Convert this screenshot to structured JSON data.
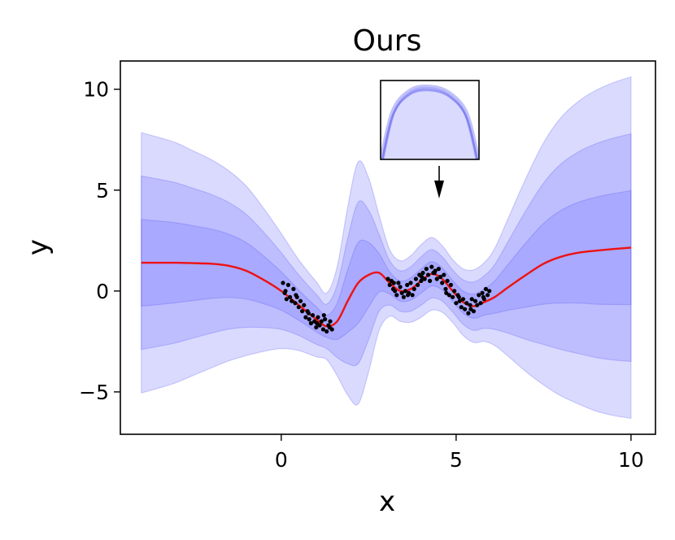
{
  "chart_data": {
    "type": "line",
    "title": "Ours",
    "xlabel": "x",
    "ylabel": "y",
    "xlim": [
      -4.6,
      10.7
    ],
    "ylim": [
      -7.1,
      11.4
    ],
    "xticks": [
      0,
      5,
      10
    ],
    "xtick_labels": [
      "0",
      "5",
      "10"
    ],
    "yticks": [
      -5,
      0,
      5,
      10
    ],
    "ytick_labels": [
      "−5",
      "0",
      "5",
      "10"
    ],
    "grid": false,
    "legend": "none",
    "colors": {
      "mean_line": "#ee1111",
      "band_fill": "#6a6aff",
      "band_edge": "#5050ee",
      "points": "#000000"
    },
    "x": [
      -4,
      -3.5,
      -3,
      -2.5,
      -2,
      -1.5,
      -1,
      -0.5,
      0,
      0.5,
      1,
      1.3,
      1.6,
      1.9,
      2.2,
      2.5,
      2.8,
      3.1,
      3.4,
      3.7,
      4.0,
      4.3,
      4.6,
      4.9,
      5.2,
      5.5,
      5.8,
      6.1,
      6.5,
      7,
      7.5,
      8,
      8.5,
      9,
      9.5,
      10
    ],
    "mean": [
      1.4,
      1.4,
      1.4,
      1.38,
      1.35,
      1.25,
      1.0,
      0.55,
      0.0,
      -0.7,
      -1.4,
      -1.75,
      -1.5,
      -0.5,
      0.4,
      0.8,
      0.9,
      0.4,
      0.0,
      0.1,
      0.5,
      0.85,
      0.6,
      0.0,
      -0.55,
      -0.75,
      -0.55,
      -0.3,
      0.2,
      0.8,
      1.35,
      1.7,
      1.9,
      2.0,
      2.08,
      2.15
    ],
    "std": [
      2.15,
      2.07,
      1.98,
      1.85,
      1.72,
      1.57,
      1.4,
      1.18,
      0.95,
      0.75,
      0.62,
      0.55,
      0.9,
      1.55,
      2.0,
      1.6,
      0.95,
      0.55,
      0.5,
      0.55,
      0.6,
      0.6,
      0.55,
      0.52,
      0.55,
      0.6,
      0.65,
      0.8,
      1.15,
      1.6,
      2.0,
      2.3,
      2.5,
      2.65,
      2.75,
      2.82
    ],
    "band_multipliers": [
      1,
      2,
      3
    ],
    "observations_x": [
      0.05,
      0.1,
      0.15,
      0.2,
      0.25,
      0.3,
      0.35,
      0.4,
      0.45,
      0.5,
      0.55,
      0.6,
      0.65,
      0.7,
      0.75,
      0.8,
      0.85,
      0.9,
      0.95,
      1.0,
      1.05,
      1.1,
      1.15,
      1.2,
      1.25,
      1.3,
      1.35,
      1.4,
      1.45,
      3.05,
      3.1,
      3.15,
      3.2,
      3.25,
      3.3,
      3.35,
      3.4,
      3.45,
      3.5,
      3.55,
      3.6,
      3.65,
      3.7,
      3.75,
      3.8,
      3.85,
      3.9,
      3.95,
      4.0,
      4.05,
      4.1,
      4.15,
      4.2,
      4.25,
      4.3,
      4.35,
      4.4,
      4.45,
      4.5,
      4.55,
      4.6,
      4.65,
      4.7,
      4.75,
      4.8,
      4.85,
      4.9,
      4.95,
      5.0,
      5.05,
      5.1,
      5.15,
      5.2,
      5.25,
      5.3,
      5.35,
      5.4,
      5.45,
      5.5,
      5.55,
      5.6,
      5.65,
      5.7,
      5.75,
      5.8,
      5.85,
      5.9,
      5.95,
      0.12,
      0.42,
      0.78,
      1.02,
      1.22,
      1.38,
      3.22,
      3.62,
      4.02,
      4.38,
      4.72,
      5.08,
      5.42,
      5.78
    ],
    "observations_y": [
      0.4,
      -0.1,
      -0.4,
      0.3,
      -0.3,
      -0.5,
      0.1,
      -0.6,
      -0.3,
      -0.8,
      -0.5,
      -1.0,
      -0.7,
      -1.3,
      -1.0,
      -1.4,
      -1.6,
      -1.2,
      -1.5,
      -1.8,
      -1.3,
      -1.7,
      -1.5,
      -1.9,
      -1.4,
      -2.0,
      -1.7,
      -1.5,
      -1.9,
      0.6,
      0.3,
      0.5,
      0.1,
      0.0,
      -0.2,
      0.4,
      0.2,
      -0.1,
      -0.3,
      0.0,
      0.3,
      -0.1,
      0.4,
      -0.2,
      0.1,
      0.6,
      0.3,
      0.8,
      0.5,
      0.9,
      0.6,
      1.1,
      0.8,
      0.5,
      1.2,
      0.9,
      1.0,
      0.6,
      1.1,
      0.7,
      0.4,
      0.8,
      0.1,
      0.5,
      -0.2,
      0.3,
      -0.3,
      0.0,
      -0.6,
      -0.2,
      -0.5,
      -0.8,
      -0.4,
      -0.9,
      -0.6,
      -1.1,
      -0.7,
      -0.4,
      -1.0,
      -0.5,
      -0.7,
      -0.2,
      -0.6,
      -0.1,
      -0.4,
      0.1,
      -0.2,
      0.0,
      0.0,
      -0.2,
      -1.1,
      -1.6,
      -1.2,
      -1.8,
      0.4,
      -0.2,
      0.7,
      0.9,
      -0.1,
      -0.3,
      -0.9,
      -0.3
    ],
    "inset": {
      "x_range": [
        4.3,
        4.7
      ],
      "y_range": [
        0.7,
        1.0
      ],
      "arrow_target": [
        4.5,
        4.5
      ]
    }
  }
}
